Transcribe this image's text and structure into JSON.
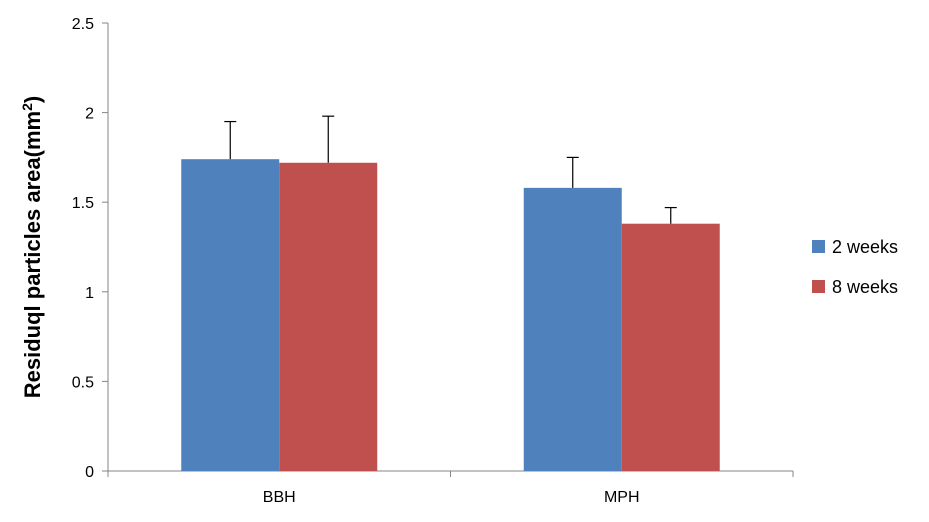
{
  "chart_data": {
    "type": "bar",
    "categories": [
      "BBH",
      "MPH"
    ],
    "series": [
      {
        "name": "2 weeks",
        "values": [
          1.74,
          1.58
        ],
        "errors": [
          0.21,
          0.17
        ],
        "color": "#4F81BD"
      },
      {
        "name": "8 weeks",
        "values": [
          1.72,
          1.38
        ],
        "errors": [
          0.26,
          0.09
        ],
        "color": "#C0504D"
      }
    ],
    "ylabel_main": "Residuql particles area(mm",
    "ylabel_sup": "2",
    "ylabel_close": ")",
    "ylim": [
      0,
      2.5
    ],
    "yticks": [
      0,
      0.5,
      1,
      1.5,
      2,
      2.5
    ],
    "ytick_labels": [
      "0",
      "0.5",
      "1",
      "1.5",
      "2",
      "2.5"
    ],
    "grid": false,
    "legend_position": "right"
  }
}
